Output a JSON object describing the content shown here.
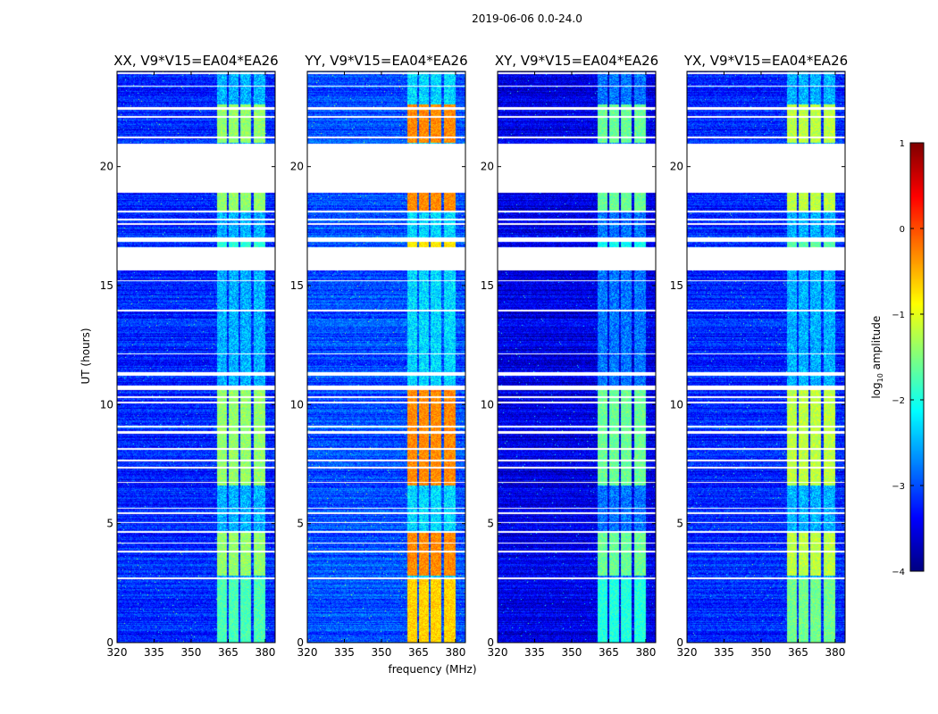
{
  "chart_data": {
    "type": "heatmap",
    "title": "2019-06-06 0.0-24.0",
    "xlabel": "frequency (MHz)",
    "ylabel": "UT (hours)",
    "xlim": [
      320,
      384
    ],
    "ylim": [
      0,
      24
    ],
    "xticks": [
      320,
      335,
      350,
      365,
      380
    ],
    "yticks": [
      0,
      5,
      10,
      15,
      20
    ],
    "colorbar": {
      "label_prefix": "log",
      "label_sub": "10",
      "label_suffix": " amplitude",
      "range": [
        -4,
        1
      ],
      "ticks": [
        1,
        0,
        -1,
        -2,
        -3,
        -4
      ],
      "colormap": "jet"
    },
    "flagged_hours": [
      [
        18.9,
        20.95
      ],
      [
        15.65,
        16.63
      ],
      [
        16.85,
        17.04
      ],
      [
        22.4,
        22.5
      ],
      [
        10.6,
        10.8
      ]
    ],
    "band_mhz": [
      360.5,
      380
    ],
    "band_gaps_mhz": [
      364.8,
      369.5,
      374.8
    ],
    "band_segments": [
      {
        "t0": 21,
        "t1": 22.6,
        "w": 1
      },
      {
        "t0": 18.1,
        "t1": 18.9,
        "w": 1
      },
      {
        "t0": 16.6,
        "t1": 17,
        "w": 0.6
      },
      {
        "t0": 6.6,
        "t1": 10.6,
        "w": 1
      },
      {
        "t0": 2.8,
        "t1": 4.6,
        "w": 1
      },
      {
        "t0": 0,
        "t1": 2.7,
        "w": 0.7
      }
    ],
    "panels": [
      {
        "title": "XX, V9*V15=EA04*EA26",
        "background": -3.2,
        "band": -1.4
      },
      {
        "title": "YY, V9*V15=EA04*EA26",
        "background": -3.0,
        "band": -0.3
      },
      {
        "title": "XY, V9*V15=EA04*EA26",
        "background": -3.5,
        "band": -1.6
      },
      {
        "title": "YX, V9*V15=EA04*EA26",
        "background": -3.2,
        "band": -1.2
      }
    ]
  }
}
